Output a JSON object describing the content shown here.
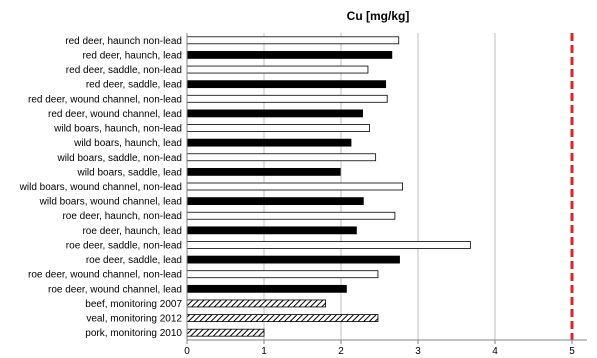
{
  "chart_data": {
    "type": "bar",
    "orientation": "horizontal",
    "title": "Cu [mg/kg]",
    "xlabel": "",
    "ylabel": "",
    "xlim": [
      0,
      5.2
    ],
    "x_ticks": [
      "0",
      "1",
      "2",
      "3",
      "4",
      "5"
    ],
    "grid": "vertical gridlines",
    "reference_line": {
      "value": 5,
      "color": "#d62728",
      "style": "dashed"
    },
    "categories": [
      "red deer, haunch non-lead",
      "red deer, haunch, lead",
      "red deer, saddle, non-lead",
      "red deer, saddle, lead",
      "red deer, wound channel, non-lead",
      "red deer, wound channel, lead",
      "wild boars, haunch, non-lead",
      "wild boars, haunch, lead",
      "wild boars, saddle, non-lead",
      "wild boars, saddle, lead",
      "wild boars, wound channel, non-lead",
      "wild boars, wound channel, lead",
      "roe deer, haunch, non-lead",
      "roe deer, haunch, lead",
      "roe deer, saddle, non-lead",
      "roe deer, saddle, lead",
      "roe deer, wound channel, non-lead",
      "roe deer, wound channel, lead",
      "beef, monitoring 2007",
      "veal, monitoring 2012",
      "pork, monitoring 2010"
    ],
    "values": [
      2.75,
      2.66,
      2.35,
      2.58,
      2.6,
      2.28,
      2.37,
      2.13,
      2.45,
      1.99,
      2.8,
      2.29,
      2.7,
      2.2,
      3.68,
      2.76,
      2.48,
      2.07,
      1.8,
      2.48,
      1.0
    ],
    "fills": [
      "white",
      "black",
      "white",
      "black",
      "white",
      "black",
      "white",
      "black",
      "white",
      "black",
      "white",
      "black",
      "white",
      "black",
      "white",
      "black",
      "white",
      "black",
      "hatched",
      "hatched",
      "hatched"
    ],
    "colors": {
      "lead": "#000000",
      "non_lead": "#ffffff",
      "grid": "#bfbfbf",
      "axis": "#808080",
      "limit": "#d62728"
    }
  }
}
